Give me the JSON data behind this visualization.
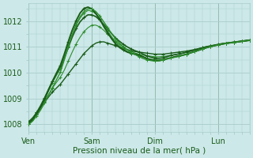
{
  "bg_color": "#cce8e8",
  "grid_color": "#aacccc",
  "line_color_dark": "#1a5c1a",
  "line_color_mid": "#2d8c2d",
  "line_color_light": "#3aaa3a",
  "xlabel": "Pression niveau de la mer( hPa )",
  "xtick_labels": [
    "Ven",
    "Sam",
    "Dim",
    "Lun"
  ],
  "xtick_positions": [
    0,
    48,
    96,
    144
  ],
  "ylim": [
    1007.7,
    1012.7
  ],
  "yticks": [
    1008,
    1009,
    1010,
    1011,
    1012
  ],
  "xlim": [
    0,
    168
  ],
  "time_points": [
    0,
    3,
    6,
    9,
    12,
    15,
    18,
    21,
    24,
    27,
    30,
    33,
    36,
    39,
    42,
    45,
    48,
    51,
    54,
    57,
    60,
    63,
    66,
    69,
    72,
    75,
    78,
    81,
    84,
    87,
    90,
    93,
    96,
    99,
    102,
    105,
    108,
    111,
    114,
    117,
    120,
    123,
    126,
    129,
    132,
    135,
    138,
    141,
    144,
    147,
    150,
    153,
    156,
    159,
    162,
    165,
    168
  ],
  "series": [
    [
      1008.1,
      1008.25,
      1008.45,
      1008.65,
      1008.85,
      1009.05,
      1009.25,
      1009.4,
      1009.55,
      1009.75,
      1009.95,
      1010.15,
      1010.35,
      1010.55,
      1010.75,
      1010.9,
      1011.05,
      1011.15,
      1011.2,
      1011.2,
      1011.15,
      1011.1,
      1011.05,
      1011.0,
      1010.95,
      1010.9,
      1010.85,
      1010.82,
      1010.8,
      1010.78,
      1010.76,
      1010.74,
      1010.72,
      1010.72,
      1010.72,
      1010.74,
      1010.76,
      1010.78,
      1010.8,
      1010.82,
      1010.84,
      1010.87,
      1010.9,
      1010.93,
      1010.96,
      1011.0,
      1011.03,
      1011.06,
      1011.09,
      1011.12,
      1011.14,
      1011.16,
      1011.18,
      1011.2,
      1011.22,
      1011.24,
      1011.26
    ],
    [
      1008.05,
      1008.2,
      1008.42,
      1008.65,
      1008.9,
      1009.15,
      1009.4,
      1009.62,
      1009.82,
      1010.1,
      1010.45,
      1010.8,
      1011.12,
      1011.38,
      1011.6,
      1011.75,
      1011.85,
      1011.85,
      1011.78,
      1011.65,
      1011.5,
      1011.35,
      1011.22,
      1011.1,
      1011.0,
      1010.9,
      1010.82,
      1010.76,
      1010.72,
      1010.68,
      1010.66,
      1010.64,
      1010.62,
      1010.62,
      1010.63,
      1010.65,
      1010.68,
      1010.7,
      1010.73,
      1010.76,
      1010.8,
      1010.84,
      1010.88,
      1010.93,
      1010.97,
      1011.01,
      1011.04,
      1011.07,
      1011.1,
      1011.13,
      1011.15,
      1011.17,
      1011.19,
      1011.21,
      1011.23,
      1011.25,
      1011.27
    ],
    [
      1008.05,
      1008.2,
      1008.45,
      1008.72,
      1009.02,
      1009.35,
      1009.65,
      1009.92,
      1010.17,
      1010.55,
      1010.98,
      1011.38,
      1011.72,
      1011.98,
      1012.15,
      1012.25,
      1012.25,
      1012.18,
      1012.05,
      1011.88,
      1011.7,
      1011.52,
      1011.35,
      1011.22,
      1011.1,
      1011.0,
      1010.92,
      1010.85,
      1010.8,
      1010.72,
      1010.65,
      1010.6,
      1010.56,
      1010.56,
      1010.58,
      1010.62,
      1010.67,
      1010.7,
      1010.73,
      1010.76,
      1010.8,
      1010.84,
      1010.88,
      1010.93,
      1010.97,
      1011.01,
      1011.04,
      1011.07,
      1011.1,
      1011.13,
      1011.15,
      1011.17,
      1011.19,
      1011.21,
      1011.23,
      1011.25,
      1011.27
    ],
    [
      1008.0,
      1008.15,
      1008.38,
      1008.65,
      1008.95,
      1009.28,
      1009.6,
      1009.9,
      1010.18,
      1010.6,
      1011.05,
      1011.48,
      1011.85,
      1012.12,
      1012.32,
      1012.42,
      1012.4,
      1012.28,
      1012.1,
      1011.85,
      1011.62,
      1011.4,
      1011.2,
      1011.05,
      1010.92,
      1010.82,
      1010.75,
      1010.7,
      1010.65,
      1010.6,
      1010.55,
      1010.52,
      1010.5,
      1010.5,
      1010.52,
      1010.55,
      1010.58,
      1010.62,
      1010.65,
      1010.68,
      1010.72,
      1010.77,
      1010.82,
      1010.87,
      1010.92,
      1010.97,
      1011.01,
      1011.05,
      1011.08,
      1011.11,
      1011.14,
      1011.16,
      1011.18,
      1011.2,
      1011.22,
      1011.24,
      1011.26
    ],
    [
      1008.0,
      1008.15,
      1008.38,
      1008.65,
      1008.98,
      1009.33,
      1009.67,
      1009.98,
      1010.28,
      1010.72,
      1011.2,
      1011.65,
      1012.02,
      1012.32,
      1012.5,
      1012.55,
      1012.48,
      1012.3,
      1012.08,
      1011.8,
      1011.55,
      1011.32,
      1011.12,
      1010.98,
      1010.88,
      1010.8,
      1010.75,
      1010.72,
      1010.68,
      1010.62,
      1010.55,
      1010.5,
      1010.47,
      1010.47,
      1010.5,
      1010.54,
      1010.58,
      1010.62,
      1010.65,
      1010.68,
      1010.72,
      1010.77,
      1010.82,
      1010.87,
      1010.92,
      1010.97,
      1011.01,
      1011.05,
      1011.08,
      1011.11,
      1011.14,
      1011.16,
      1011.18,
      1011.2,
      1011.22,
      1011.24,
      1011.26
    ],
    [
      1008.0,
      1008.12,
      1008.32,
      1008.55,
      1008.82,
      1009.12,
      1009.42,
      1009.72,
      1010.02,
      1010.5,
      1011.0,
      1011.48,
      1011.88,
      1012.18,
      1012.38,
      1012.48,
      1012.48,
      1012.38,
      1012.2,
      1011.98,
      1011.75,
      1011.52,
      1011.32,
      1011.15,
      1011.0,
      1010.88,
      1010.78,
      1010.7,
      1010.62,
      1010.55,
      1010.5,
      1010.47,
      1010.45,
      1010.46,
      1010.49,
      1010.53,
      1010.57,
      1010.6,
      1010.63,
      1010.67,
      1010.72,
      1010.77,
      1010.82,
      1010.87,
      1010.92,
      1010.97,
      1011.01,
      1011.05,
      1011.08,
      1011.11,
      1011.14,
      1011.16,
      1011.18,
      1011.2,
      1011.22,
      1011.24,
      1011.26
    ]
  ],
  "colors": [
    "#1a5c1a",
    "#2d8c2d",
    "#1a5c1a",
    "#2d8c2d",
    "#1a5c1a",
    "#2d8c2d"
  ],
  "linewidths": [
    1.0,
    0.8,
    1.2,
    0.8,
    1.4,
    1.0
  ]
}
